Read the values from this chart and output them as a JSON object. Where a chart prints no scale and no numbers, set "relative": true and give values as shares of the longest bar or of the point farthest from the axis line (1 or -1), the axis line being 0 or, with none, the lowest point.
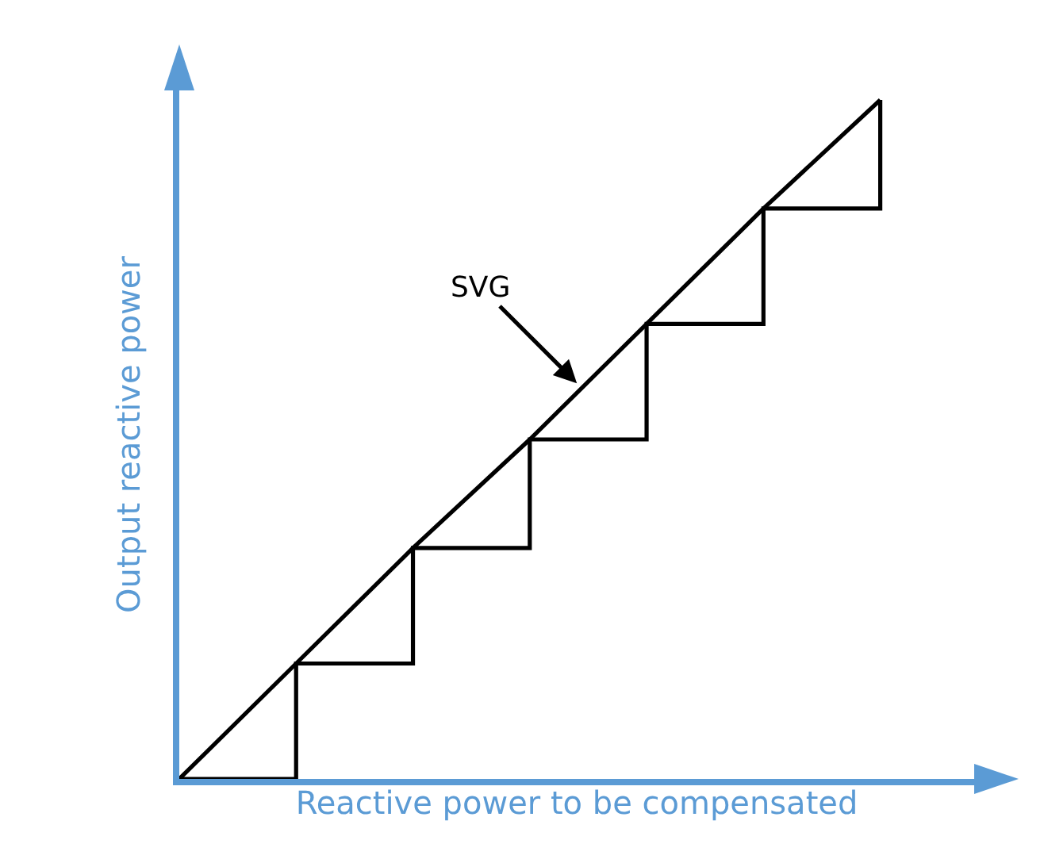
{
  "chart_data": {
    "type": "line",
    "relative": true,
    "xlabel": "Reactive power to be compensated",
    "ylabel": "Output reactive power",
    "categories": [
      null,
      null,
      null,
      null,
      null,
      null,
      null
    ],
    "series": [
      {
        "color": "#000000",
        "values": [
          0,
          0.17,
          0.34,
          0.5,
          0.67,
          0.84,
          1
        ]
      },
      {
        "type": "step",
        "color": "#000000",
        "values": [
          0,
          0.17,
          0.34,
          0.5,
          0.67,
          0.84,
          1
        ]
      }
    ],
    "annotations": [
      "SVG"
    ]
  }
}
